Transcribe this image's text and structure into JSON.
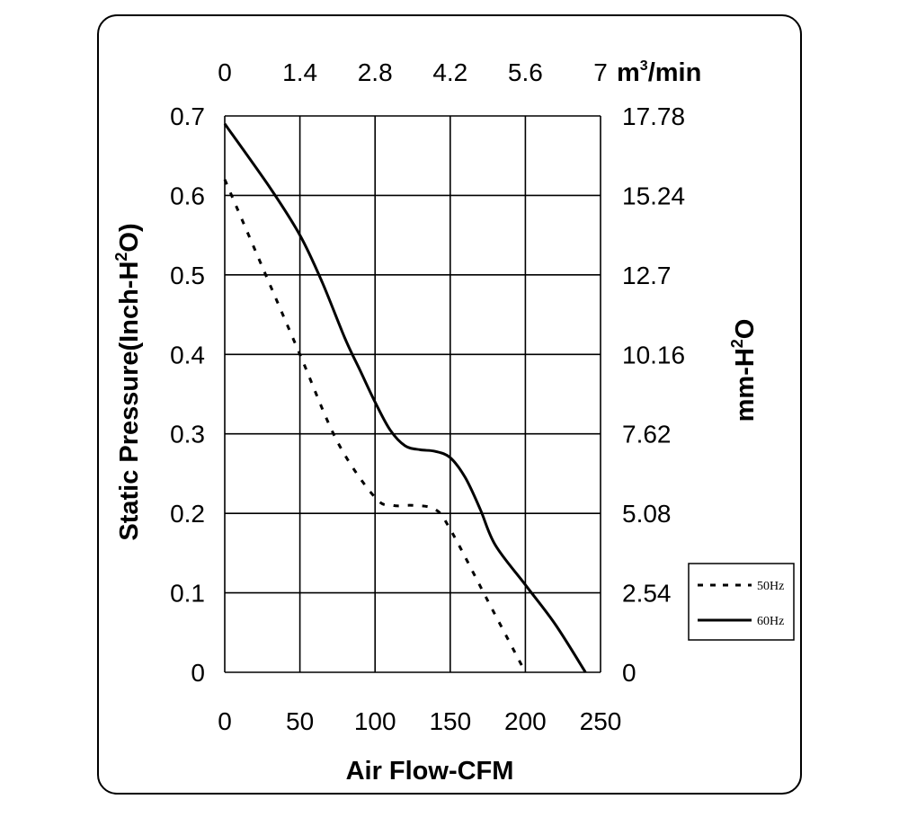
{
  "chart_data": {
    "type": "line",
    "xlabel": "Air Flow-CFM",
    "ylabel": "Static Pressure(Inch-H",
    "ylabel_sup": "2",
    "ylabel_end": "O)",
    "y2label": "mm-H",
    "y2label_sup": "2",
    "y2label_end": "O",
    "top_unit": "m",
    "top_unit_sup": "3",
    "top_unit_end": "/min",
    "xlim": [
      0,
      250
    ],
    "ylim": [
      0,
      0.7
    ],
    "x_ticks": [
      "0",
      "50",
      "100",
      "150",
      "200",
      "250"
    ],
    "y_ticks": [
      "0",
      "0.1",
      "0.2",
      "0.3",
      "0.4",
      "0.5",
      "0.6",
      "0.7"
    ],
    "y2_ticks": [
      "0",
      "2.54",
      "5.08",
      "7.62",
      "10.16",
      "12.7",
      "15.24",
      "17.78"
    ],
    "top_ticks": [
      "0",
      "1.4",
      "2.8",
      "4.2",
      "5.6",
      "7"
    ],
    "grid": true,
    "legend_position": "bottom-right",
    "series": [
      {
        "name": "50Hz",
        "style": "dashed",
        "color": "#000000",
        "x": [
          0,
          25,
          50,
          75,
          100,
          112,
          125,
          140,
          150,
          175,
          200
        ],
        "y": [
          0.62,
          0.51,
          0.4,
          0.29,
          0.22,
          0.21,
          0.21,
          0.205,
          0.18,
          0.09,
          0.0
        ]
      },
      {
        "name": "60Hz",
        "style": "solid",
        "color": "#000000",
        "x": [
          0,
          30,
          50,
          65,
          80,
          90,
          100,
          110,
          120,
          130,
          140,
          150,
          160,
          170,
          180,
          200,
          220,
          240
        ],
        "y": [
          0.69,
          0.61,
          0.55,
          0.49,
          0.42,
          0.38,
          0.34,
          0.305,
          0.285,
          0.28,
          0.278,
          0.27,
          0.245,
          0.205,
          0.16,
          0.11,
          0.06,
          0.0
        ]
      }
    ]
  }
}
